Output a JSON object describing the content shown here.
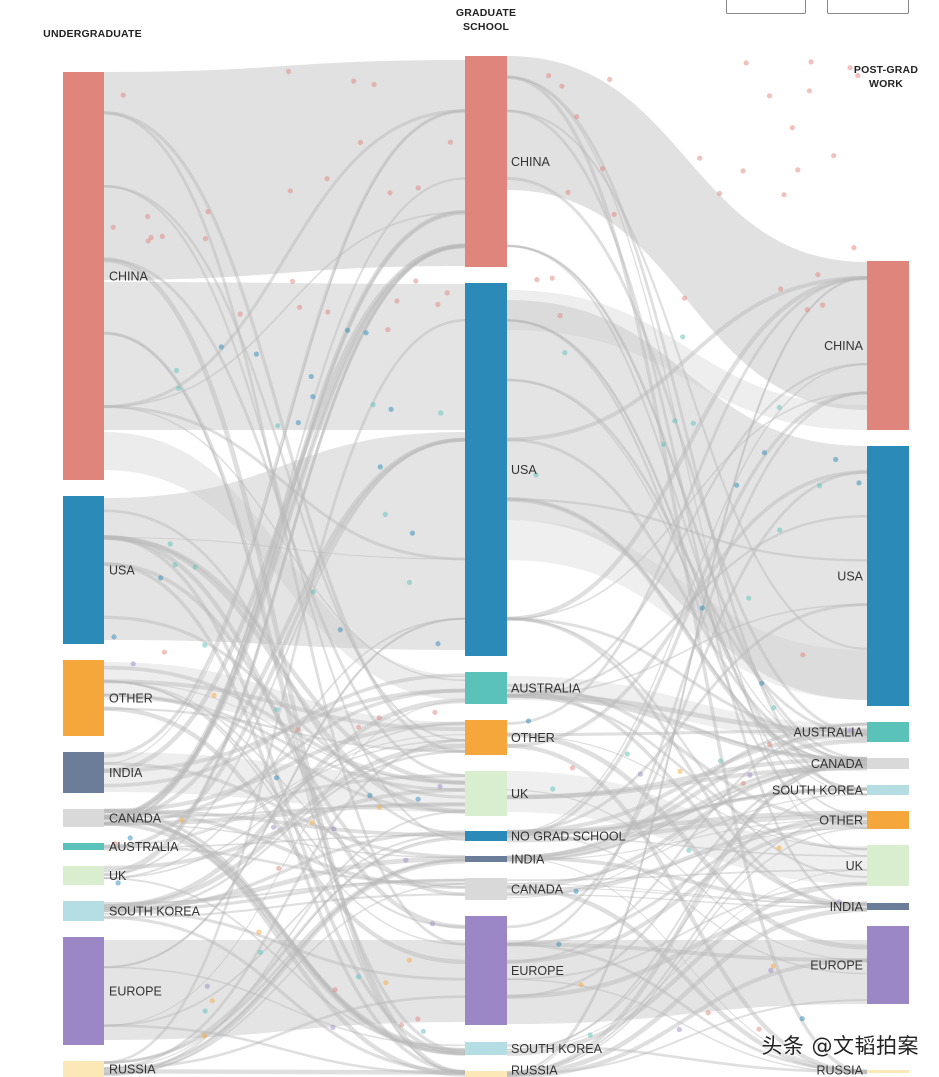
{
  "titles": {
    "undergraduate": "UNDERGRADUATE",
    "graduate_line1": "GRADUATE",
    "graduate_line2": "SCHOOL",
    "postgrad_line1": "POST-GRAD",
    "postgrad_line2": "WORK"
  },
  "watermark": "头条 @文韬拍案",
  "colors": {
    "China": "#e0857b",
    "USA": "#2b8ab7",
    "Other": "#f5a73b",
    "India": "#6b7d99",
    "Canada": "#d9d9d9",
    "Australia": "#5bc2ba",
    "UK": "#d8eecf",
    "South Korea": "#b5dde4",
    "Europe": "#9b87c6",
    "Russia": "#fbe8b6",
    "No Grad School": "#2b8ab7",
    "link": "#d4d4d4"
  },
  "undergraduate": [
    {
      "key": "China",
      "label": "CHINA"
    },
    {
      "key": "USA",
      "label": "USA"
    },
    {
      "key": "Other",
      "label": "OTHER"
    },
    {
      "key": "India",
      "label": "INDIA"
    },
    {
      "key": "Canada",
      "label": "CANADA"
    },
    {
      "key": "Australia",
      "label": "AUSTRALIA"
    },
    {
      "key": "UK",
      "label": "UK"
    },
    {
      "key": "South Korea",
      "label": "SOUTH KOREA"
    },
    {
      "key": "Europe",
      "label": "EUROPE"
    },
    {
      "key": "Russia",
      "label": "RUSSIA"
    }
  ],
  "graduate": [
    {
      "key": "China",
      "label": "CHINA"
    },
    {
      "key": "USA",
      "label": "USA"
    },
    {
      "key": "Australia",
      "label": "AUSTRALIA"
    },
    {
      "key": "Other",
      "label": "OTHER"
    },
    {
      "key": "UK",
      "label": "UK"
    },
    {
      "key": "No Grad School",
      "label": "NO GRAD SCHOOL"
    },
    {
      "key": "India",
      "label": "INDIA"
    },
    {
      "key": "Canada",
      "label": "CANADA"
    },
    {
      "key": "Europe",
      "label": "EUROPE"
    },
    {
      "key": "South Korea",
      "label": "SOUTH KOREA"
    },
    {
      "key": "Russia",
      "label": "RUSSIA"
    }
  ],
  "postgrad": [
    {
      "key": "China",
      "label": "CHINA"
    },
    {
      "key": "USA",
      "label": "USA"
    },
    {
      "key": "Australia",
      "label": "AUSTRALIA"
    },
    {
      "key": "Canada",
      "label": "CANADA"
    },
    {
      "key": "South Korea",
      "label": "SOUTH KOREA"
    },
    {
      "key": "Other",
      "label": "OTHER"
    },
    {
      "key": "UK",
      "label": "UK"
    },
    {
      "key": "India",
      "label": "INDIA"
    },
    {
      "key": "Europe",
      "label": "EUROPE"
    },
    {
      "key": "Russia",
      "label": "RUSSIA"
    }
  ]
}
